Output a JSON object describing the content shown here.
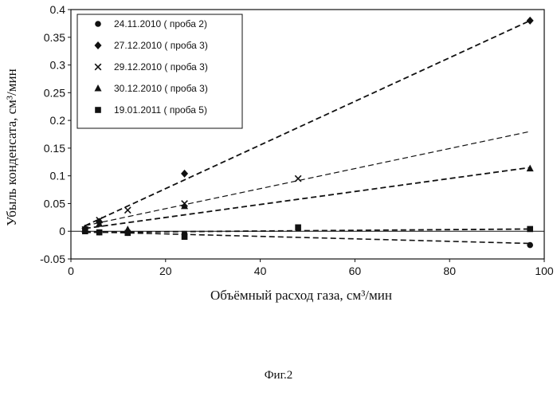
{
  "caption": "Фиг.2",
  "chart_data": {
    "type": "scatter",
    "xlabel": "Объёмный расход газа, см³/мин",
    "ylabel": "Убыль конденсата, см³/мин",
    "xlim": [
      0,
      100
    ],
    "ylim": [
      -0.05,
      0.4
    ],
    "x_ticks": [
      "0",
      "20",
      "40",
      "60",
      "80",
      "100"
    ],
    "y_ticks": [
      "-0.05",
      "0",
      "0.05",
      "0.1",
      "0.15",
      "0.2",
      "0.25",
      "0.3",
      "0.35",
      "0.4"
    ],
    "grid": false,
    "legend_position": "top-left",
    "series": [
      {
        "name": "24.11.2010 ( проба  2)",
        "marker": "circle",
        "points": [
          [
            3,
            0.0
          ],
          [
            6,
            -0.002
          ],
          [
            12,
            -0.003
          ],
          [
            24,
            -0.005
          ],
          [
            97,
            -0.025
          ]
        ],
        "trend": [
          [
            3,
            -0.001
          ],
          [
            97,
            -0.022
          ]
        ]
      },
      {
        "name": "27.12.2010 ( проба  3)",
        "marker": "diamond",
        "points": [
          [
            3,
            0.005
          ],
          [
            6,
            0.017
          ],
          [
            24,
            0.104
          ],
          [
            97,
            0.38
          ]
        ],
        "trend": [
          [
            3,
            0.01
          ],
          [
            97,
            0.38
          ]
        ]
      },
      {
        "name": "29.12.2010 ( проба  3)",
        "marker": "cross",
        "points": [
          [
            3,
            0.003
          ],
          [
            6,
            0.02
          ],
          [
            12,
            0.038
          ],
          [
            24,
            0.05
          ],
          [
            48,
            0.095
          ]
        ],
        "trend": [
          [
            3,
            0.01
          ],
          [
            97,
            0.18
          ]
        ]
      },
      {
        "name": "30.12.2010 ( проба  3)",
        "marker": "triangle",
        "points": [
          [
            3,
            0.003
          ],
          [
            6,
            0.013
          ],
          [
            12,
            0.003
          ],
          [
            24,
            0.045
          ],
          [
            97,
            0.113
          ]
        ],
        "trend": [
          [
            3,
            0.005
          ],
          [
            97,
            0.115
          ]
        ]
      },
      {
        "name": "19.01.2011 ( проба  5)",
        "marker": "square",
        "points": [
          [
            3,
            0.0
          ],
          [
            6,
            -0.002
          ],
          [
            12,
            -0.003
          ],
          [
            24,
            -0.01
          ],
          [
            48,
            0.007
          ],
          [
            97,
            0.004
          ]
        ],
        "trend": [
          [
            3,
            -0.002
          ],
          [
            97,
            0.004
          ]
        ]
      }
    ]
  }
}
